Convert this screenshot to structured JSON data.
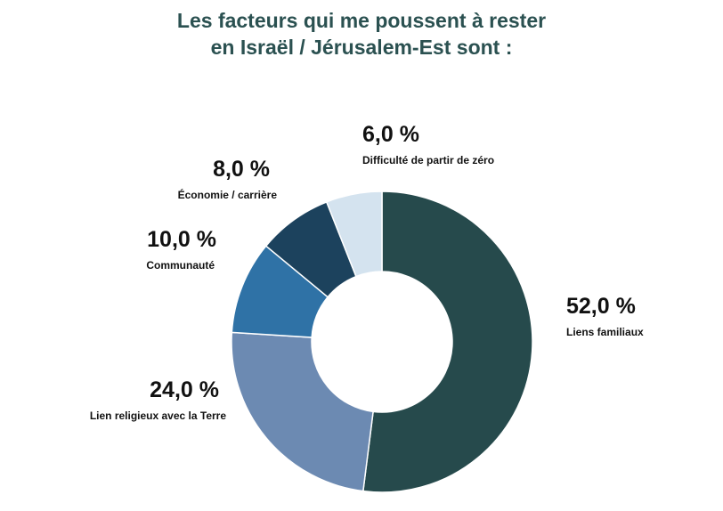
{
  "chart_data": {
    "type": "pie",
    "title_lines": [
      "Les facteurs qui me poussent à rester",
      "en Israël / Jérusalem-Est sont :"
    ],
    "slices": [
      {
        "label": "Liens familiaux",
        "value": 52.0,
        "value_label": "52,0 %",
        "color": "#264a4c"
      },
      {
        "label": "Lien religieux avec la Terre",
        "value": 24.0,
        "value_label": "24,0 %",
        "color": "#6c8ab2"
      },
      {
        "label": "Communauté",
        "value": 10.0,
        "value_label": "10,0 %",
        "color": "#2f72a6"
      },
      {
        "label": "Économie / carrière",
        "value": 8.0,
        "value_label": "8,0 %",
        "color": "#1c425d"
      },
      {
        "label": "Difficulté de partir de zéro",
        "value": 6.0,
        "value_label": "6,0 %",
        "color": "#d4e3ef"
      }
    ],
    "donut": true,
    "start_angle": "top",
    "direction": "clockwise",
    "legend": "none"
  }
}
